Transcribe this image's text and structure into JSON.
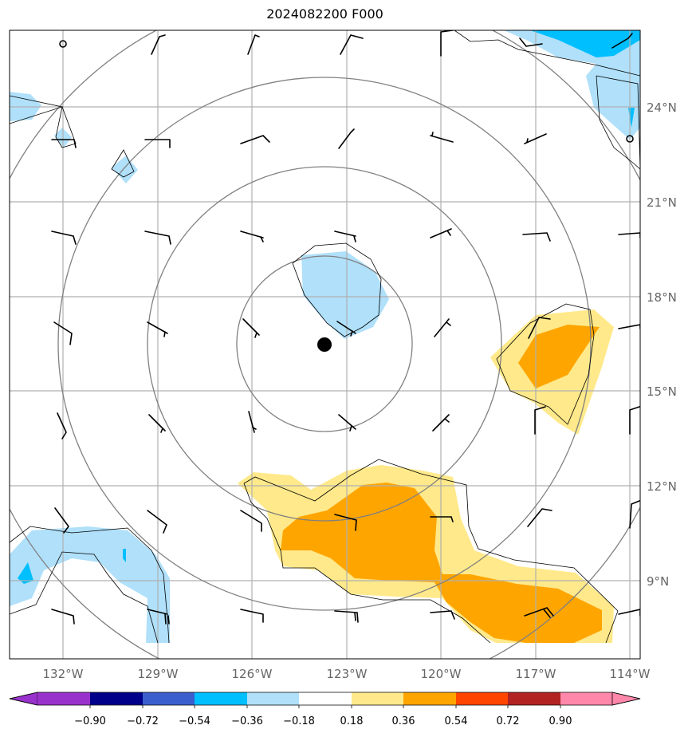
{
  "title": "2024082200 F000",
  "lon_labels": [
    "132°W",
    "129°W",
    "126°W",
    "123°W",
    "120°W",
    "117°W",
    "114°W"
  ],
  "lat_labels": [
    "24°N",
    "21°N",
    "18°N",
    "15°N",
    "12°N",
    "9°N"
  ],
  "colorbar": {
    "tick_labels": [
      "−0.90",
      "−0.72",
      "−0.54",
      "−0.36",
      "−0.18",
      "0.18",
      "0.36",
      "0.54",
      "0.72",
      "0.90"
    ],
    "colors": [
      "#9932cc",
      "#00008b",
      "#3a5fcd",
      "#00bfff",
      "#b0e0fa",
      "#ffffff",
      "#ffe98a",
      "#ffa500",
      "#ff4500",
      "#b22222",
      "#ff88aa"
    ]
  },
  "colors": {
    "grid": "#b0b0b0",
    "rings": "#808080",
    "coast": "#000000",
    "light_blue": "#b0e0fa",
    "blue": "#00bfff",
    "light_yellow": "#ffe98a",
    "orange": "#ffa500"
  },
  "storm_center": {
    "lon": "123.9°W",
    "lat": "16.5°N"
  }
}
